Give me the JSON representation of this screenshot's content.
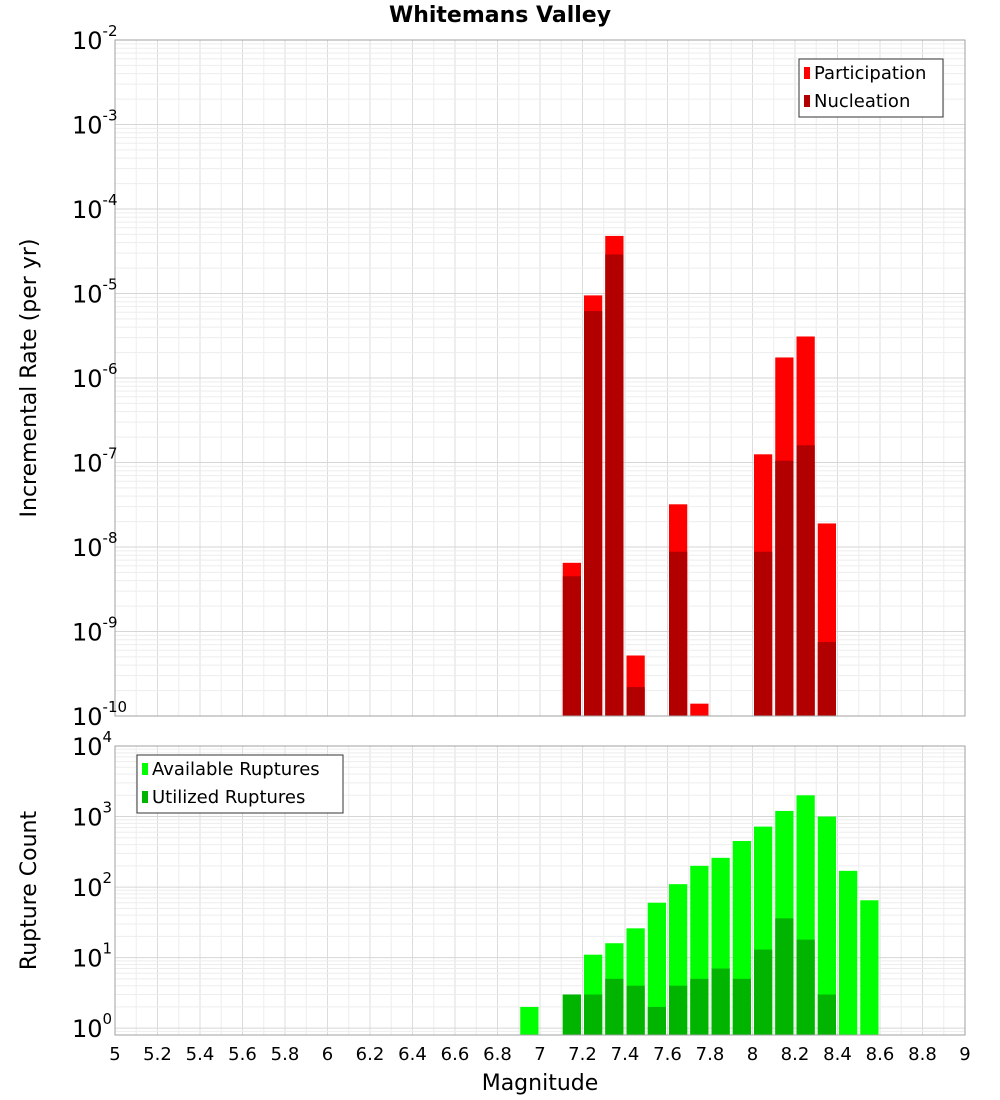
{
  "title": "Whitemans Valley",
  "xlabel": "Magnitude",
  "x_ticks": [
    "5",
    "5.2",
    "5.4",
    "5.6",
    "5.8",
    "6",
    "6.2",
    "6.4",
    "6.6",
    "6.8",
    "7",
    "7.2",
    "7.4",
    "7.6",
    "7.8",
    "8",
    "8.2",
    "8.4",
    "8.6",
    "8.8",
    "9"
  ],
  "chart_data": [
    {
      "type": "bar",
      "ylabel": "Incremental Rate (per yr)",
      "yscale": "log",
      "xlim": [
        5,
        9
      ],
      "ylim": [
        1e-10,
        0.01
      ],
      "y_ticks": [
        {
          "base": "10",
          "exp": "-10",
          "value": 1e-10
        },
        {
          "base": "10",
          "exp": "-9",
          "value": 1e-09
        },
        {
          "base": "10",
          "exp": "-8",
          "value": 1e-08
        },
        {
          "base": "10",
          "exp": "-7",
          "value": 1e-07
        },
        {
          "base": "10",
          "exp": "-6",
          "value": 1e-06
        },
        {
          "base": "10",
          "exp": "-5",
          "value": 1e-05
        },
        {
          "base": "10",
          "exp": "-4",
          "value": 0.0001
        },
        {
          "base": "10",
          "exp": "-3",
          "value": 0.001
        },
        {
          "base": "10",
          "exp": "-2",
          "value": 0.01
        }
      ],
      "bar_width": 0.1,
      "grid": true,
      "legend_position": "top-right",
      "series": [
        {
          "name": "Participation",
          "color": "#ff0000",
          "x": [
            7.15,
            7.25,
            7.35,
            7.45,
            7.65,
            7.75,
            8.05,
            8.15,
            8.25,
            8.35
          ],
          "y": [
            6.5e-09,
            9.5e-06,
            4.8e-05,
            5.2e-10,
            3.2e-08,
            1.4e-10,
            1.25e-07,
            1.75e-06,
            3.1e-06,
            1.9e-08
          ]
        },
        {
          "name": "Nucleation",
          "color": "#b20000",
          "x": [
            7.15,
            7.25,
            7.35,
            7.45,
            7.65,
            8.05,
            8.15,
            8.25,
            8.35
          ],
          "y": [
            4.5e-09,
            6.2e-06,
            2.9e-05,
            2.2e-10,
            8.8e-09,
            8.8e-09,
            1.05e-07,
            1.6e-07,
            7.5e-10
          ]
        }
      ]
    },
    {
      "type": "bar",
      "ylabel": "Rupture Count",
      "yscale": "log",
      "xlim": [
        5,
        9
      ],
      "ylim": [
        0.8,
        10000
      ],
      "y_ticks": [
        {
          "base": "10",
          "exp": "0",
          "value": 1
        },
        {
          "base": "10",
          "exp": "1",
          "value": 10
        },
        {
          "base": "10",
          "exp": "2",
          "value": 100
        },
        {
          "base": "10",
          "exp": "3",
          "value": 1000
        },
        {
          "base": "10",
          "exp": "4",
          "value": 10000
        }
      ],
      "bar_width": 0.1,
      "grid": true,
      "legend_position": "top-left",
      "series": [
        {
          "name": "Available Ruptures",
          "color": "#00ff00",
          "x": [
            6.95,
            7.15,
            7.25,
            7.35,
            7.45,
            7.55,
            7.65,
            7.75,
            7.85,
            7.95,
            8.05,
            8.15,
            8.25,
            8.35,
            8.45,
            8.55
          ],
          "y": [
            2,
            3,
            11,
            16,
            26,
            60,
            110,
            200,
            260,
            450,
            720,
            1200,
            2000,
            1000,
            170,
            65
          ]
        },
        {
          "name": "Utilized Ruptures",
          "color": "#00b400",
          "x": [
            7.15,
            7.25,
            7.35,
            7.45,
            7.55,
            7.65,
            7.75,
            7.85,
            7.95,
            8.05,
            8.15,
            8.25,
            8.35
          ],
          "y": [
            3,
            3,
            5,
            4,
            2,
            4,
            5,
            7,
            5,
            13,
            36,
            18,
            3
          ]
        }
      ]
    }
  ]
}
